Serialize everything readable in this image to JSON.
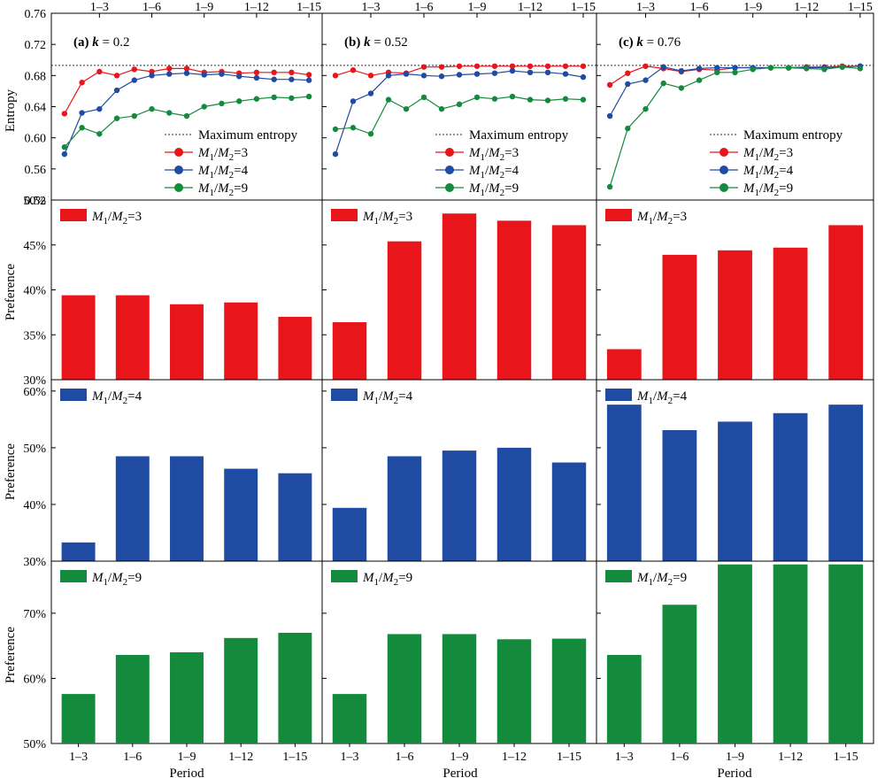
{
  "figure": {
    "x_axis_label": "Period",
    "entropy_axis_label": "Entropy",
    "preference_axis_label": "Preference",
    "periods": [
      "1–3",
      "1–6",
      "1–9",
      "1–12",
      "1–15"
    ],
    "colors": {
      "r3": "#e8151b",
      "r4": "#1f4ba2",
      "r9": "#148a3c",
      "maxline": "#333333"
    },
    "legend": {
      "max": "Maximum  entropy",
      "r3": "M1/M2=3",
      "r4": "M1/M2=4",
      "r9": "M1/M2=9"
    }
  },
  "chart_data": [
    {
      "id": "a",
      "type": "line",
      "title_tag": "(a)",
      "title_k": "k = 0.2",
      "ylabel": "Entropy",
      "ylim": [
        0.52,
        0.76
      ],
      "yticks": [
        "0.52",
        "0.56",
        "0.60",
        "0.64",
        "0.68",
        "0.72",
        "0.76"
      ],
      "top_ticks": [
        "1–3",
        "1–6",
        "1–9",
        "1–12",
        "1–15"
      ],
      "max_entropy": 0.693,
      "x": [
        1,
        2,
        3,
        4,
        5,
        6,
        7,
        8,
        9,
        10,
        11,
        12,
        13,
        14,
        15
      ],
      "series": [
        {
          "name": "M1/M2=3",
          "values": [
            0.631,
            0.671,
            0.685,
            0.68,
            0.688,
            0.685,
            0.689,
            0.689,
            0.684,
            0.685,
            0.683,
            0.684,
            0.684,
            0.684,
            0.681
          ]
        },
        {
          "name": "M1/M2=4",
          "values": [
            0.579,
            0.632,
            0.637,
            0.661,
            0.674,
            0.68,
            0.682,
            0.683,
            0.681,
            0.682,
            0.679,
            0.677,
            0.675,
            0.675,
            0.674
          ]
        },
        {
          "name": "M1/M2=9",
          "values": [
            0.588,
            0.613,
            0.605,
            0.625,
            0.628,
            0.637,
            0.632,
            0.628,
            0.64,
            0.644,
            0.647,
            0.65,
            0.652,
            0.651,
            0.653
          ]
        }
      ]
    },
    {
      "id": "b",
      "type": "line",
      "title_tag": "(b)",
      "title_k": "k = 0.52",
      "ylabel": "Entropy",
      "ylim": [
        0.52,
        0.76
      ],
      "yticks": [
        "0.52",
        "0.56",
        "0.60",
        "0.64",
        "0.68",
        "0.72",
        "0.76"
      ],
      "top_ticks": [
        "1–3",
        "1–6",
        "1–9",
        "1–12",
        "1–15"
      ],
      "max_entropy": 0.693,
      "x": [
        1,
        2,
        3,
        4,
        5,
        6,
        7,
        8,
        9,
        10,
        11,
        12,
        13,
        14,
        15
      ],
      "series": [
        {
          "name": "M1/M2=3",
          "values": [
            0.68,
            0.687,
            0.68,
            0.684,
            0.683,
            0.691,
            0.691,
            0.692,
            0.692,
            0.692,
            0.692,
            0.692,
            0.692,
            0.692,
            0.692
          ]
        },
        {
          "name": "M1/M2=4",
          "values": [
            0.579,
            0.647,
            0.657,
            0.68,
            0.682,
            0.68,
            0.679,
            0.681,
            0.682,
            0.683,
            0.686,
            0.684,
            0.684,
            0.682,
            0.678
          ]
        },
        {
          "name": "M1/M2=9",
          "values": [
            0.611,
            0.613,
            0.605,
            0.649,
            0.637,
            0.652,
            0.637,
            0.643,
            0.652,
            0.65,
            0.653,
            0.649,
            0.648,
            0.65,
            0.649
          ]
        }
      ]
    },
    {
      "id": "c",
      "type": "line",
      "title_tag": "(c)",
      "title_k": "k = 0.76",
      "ylabel": "Entropy",
      "ylim": [
        0.52,
        0.76
      ],
      "yticks": [
        "0.52",
        "0.56",
        "0.60",
        "0.64",
        "0.68",
        "0.72",
        "0.76"
      ],
      "top_ticks": [
        "1–3",
        "1–6",
        "1–9",
        "1–12",
        "1–15"
      ],
      "max_entropy": 0.693,
      "x": [
        1,
        2,
        3,
        4,
        5,
        6,
        7,
        8,
        9,
        10,
        11,
        12,
        13,
        14,
        15
      ],
      "series": [
        {
          "name": "M1/M2=3",
          "values": [
            0.668,
            0.683,
            0.692,
            0.689,
            0.685,
            0.688,
            0.687,
            0.69,
            0.69,
            0.69,
            0.69,
            0.691,
            0.691,
            0.692,
            0.692
          ]
        },
        {
          "name": "M1/M2=4",
          "values": [
            0.628,
            0.669,
            0.674,
            0.691,
            0.686,
            0.689,
            0.69,
            0.69,
            0.69,
            0.69,
            0.69,
            0.69,
            0.69,
            0.691,
            0.692
          ]
        },
        {
          "name": "M1/M2=9",
          "values": [
            0.537,
            0.612,
            0.637,
            0.67,
            0.664,
            0.674,
            0.684,
            0.684,
            0.688,
            0.69,
            0.69,
            0.689,
            0.688,
            0.691,
            0.689
          ]
        }
      ]
    },
    {
      "id": "a3",
      "type": "bar",
      "legend": "M1/M2=3",
      "ylabel": "Preference",
      "ylim": [
        30,
        50
      ],
      "yticks": [
        "30%",
        "35%",
        "40%",
        "45%",
        "50%"
      ],
      "categories": [
        "1–3",
        "1–6",
        "1–9",
        "1–12",
        "1–15"
      ],
      "values": [
        39.4,
        39.4,
        38.4,
        38.6,
        37.0
      ]
    },
    {
      "id": "b3",
      "type": "bar",
      "legend": "M1/M2=3",
      "ylabel": "Preference",
      "ylim": [
        30,
        50
      ],
      "yticks": [
        "30%",
        "35%",
        "40%",
        "45%",
        "50%"
      ],
      "categories": [
        "1–3",
        "1–6",
        "1–9",
        "1–12",
        "1–15"
      ],
      "values": [
        36.4,
        45.4,
        48.5,
        47.7,
        47.2
      ]
    },
    {
      "id": "c3",
      "type": "bar",
      "legend": "M1/M2=3",
      "ylabel": "Preference",
      "ylim": [
        30,
        50
      ],
      "yticks": [
        "30%",
        "35%",
        "40%",
        "45%",
        "50%"
      ],
      "categories": [
        "1–3",
        "1–6",
        "1–9",
        "1–12",
        "1–15"
      ],
      "values": [
        33.4,
        43.9,
        44.4,
        44.7,
        47.2
      ]
    },
    {
      "id": "a4",
      "type": "bar",
      "legend": "M1/M2=4",
      "ylabel": "Preference",
      "ylim": [
        30,
        62
      ],
      "yticks": [
        "30%",
        "40%",
        "50%",
        "60%"
      ],
      "categories": [
        "1–3",
        "1–6",
        "1–9",
        "1–12",
        "1–15"
      ],
      "values": [
        33.3,
        48.5,
        48.5,
        46.3,
        45.5
      ]
    },
    {
      "id": "b4",
      "type": "bar",
      "legend": "M1/M2=4",
      "ylabel": "Preference",
      "ylim": [
        30,
        62
      ],
      "yticks": [
        "30%",
        "40%",
        "50%",
        "60%"
      ],
      "categories": [
        "1–3",
        "1–6",
        "1–9",
        "1–12",
        "1–15"
      ],
      "values": [
        39.4,
        48.5,
        49.5,
        50.0,
        47.4
      ]
    },
    {
      "id": "c4",
      "type": "bar",
      "legend": "M1/M2=4",
      "ylabel": "Preference",
      "ylim": [
        30,
        62
      ],
      "yticks": [
        "30%",
        "40%",
        "50%",
        "60%"
      ],
      "categories": [
        "1–3",
        "1–6",
        "1–9",
        "1–12",
        "1–15"
      ],
      "values": [
        57.6,
        53.1,
        54.6,
        56.1,
        57.6
      ]
    },
    {
      "id": "a9",
      "type": "bar",
      "legend": "M1/M2=9",
      "ylabel": "Preference",
      "ylim": [
        50,
        78
      ],
      "yticks": [
        "50%",
        "60%",
        "70%"
      ],
      "categories": [
        "1–3",
        "1–6",
        "1–9",
        "1–12",
        "1–15"
      ],
      "values": [
        57.6,
        63.6,
        64.0,
        66.2,
        67.0
      ]
    },
    {
      "id": "b9",
      "type": "bar",
      "legend": "M1/M2=9",
      "ylabel": "Preference",
      "ylim": [
        50,
        78
      ],
      "yticks": [
        "50%",
        "60%",
        "70%"
      ],
      "categories": [
        "1–3",
        "1–6",
        "1–9",
        "1–12",
        "1–15"
      ],
      "values": [
        57.6,
        66.8,
        66.8,
        66.0,
        66.1
      ]
    },
    {
      "id": "c9",
      "type": "bar",
      "legend": "M1/M2=9",
      "ylabel": "Preference",
      "ylim": [
        50,
        78
      ],
      "yticks": [
        "50%",
        "60%",
        "70%"
      ],
      "categories": [
        "1–3",
        "1–6",
        "1–9",
        "1–12",
        "1–15"
      ],
      "values": [
        63.6,
        71.3,
        77.5,
        77.5,
        77.5
      ]
    }
  ]
}
